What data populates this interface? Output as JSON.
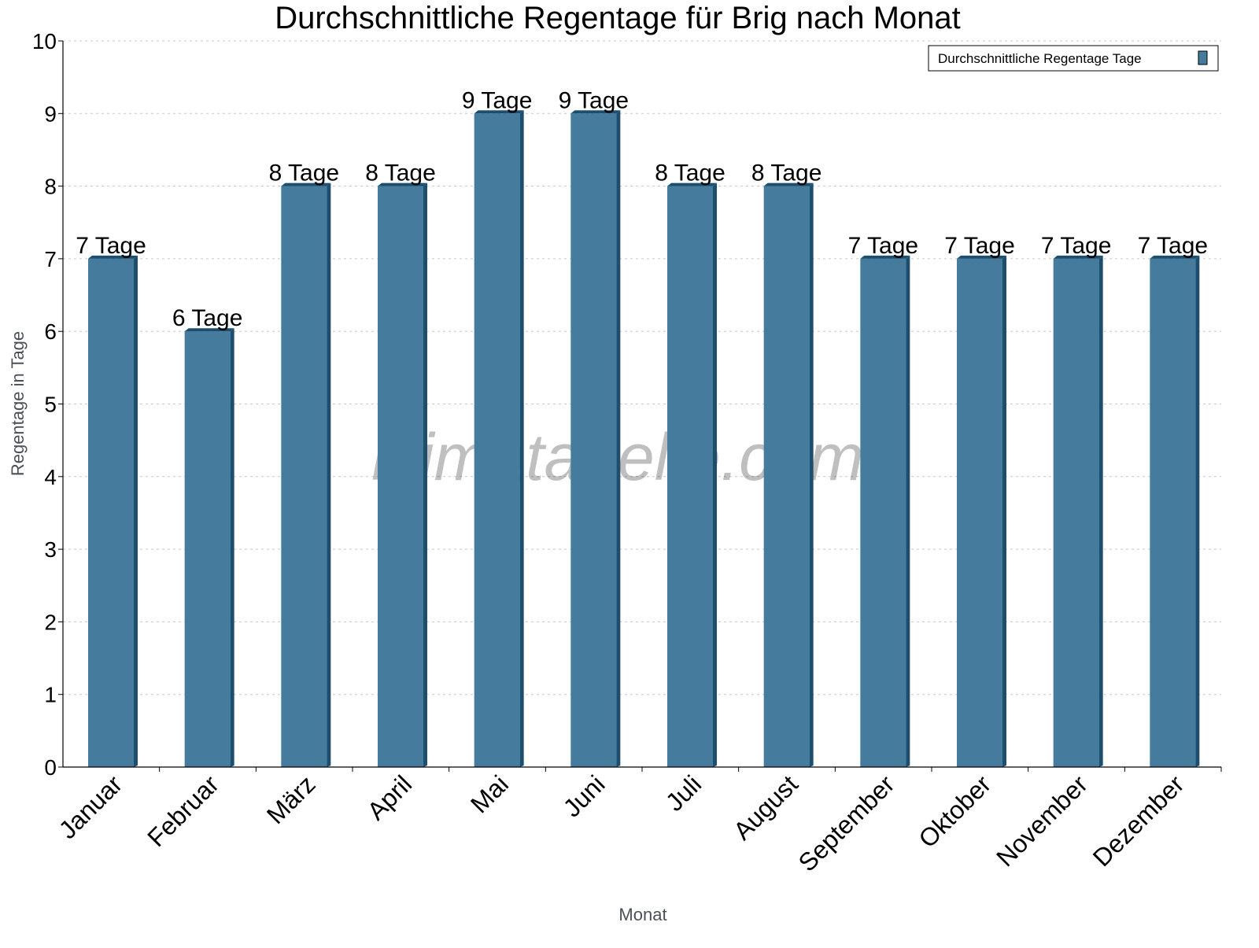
{
  "chart_data": {
    "type": "bar",
    "title": "Durchschnittliche Regentage für Brig nach Monat",
    "xlabel": "Monat",
    "ylabel": "Regentage in Tage",
    "categories": [
      "Januar",
      "Februar",
      "März",
      "April",
      "Mai",
      "Juni",
      "Juli",
      "August",
      "September",
      "Oktober",
      "November",
      "Dezember"
    ],
    "series": [
      {
        "name": "Durchschnittliche Regentage Tage",
        "values": [
          7,
          6,
          8,
          8,
          9,
          9,
          8,
          8,
          7,
          7,
          7,
          7
        ],
        "color": "#457b9d",
        "side_color": "#1d4e6e"
      }
    ],
    "data_labels": [
      "7 Tage",
      "6 Tage",
      "8 Tage",
      "8 Tage",
      "9 Tage",
      "9 Tage",
      "8 Tage",
      "8 Tage",
      "7 Tage",
      "7 Tage",
      "7 Tage",
      "7 Tage"
    ],
    "ylim": [
      0,
      10
    ],
    "yticks": [
      "0",
      "1",
      "2",
      "3",
      "4",
      "5",
      "6",
      "7",
      "8",
      "9",
      "10"
    ],
    "grid": true,
    "legend_position": "top-right",
    "watermark": "klimatabelle.com"
  }
}
